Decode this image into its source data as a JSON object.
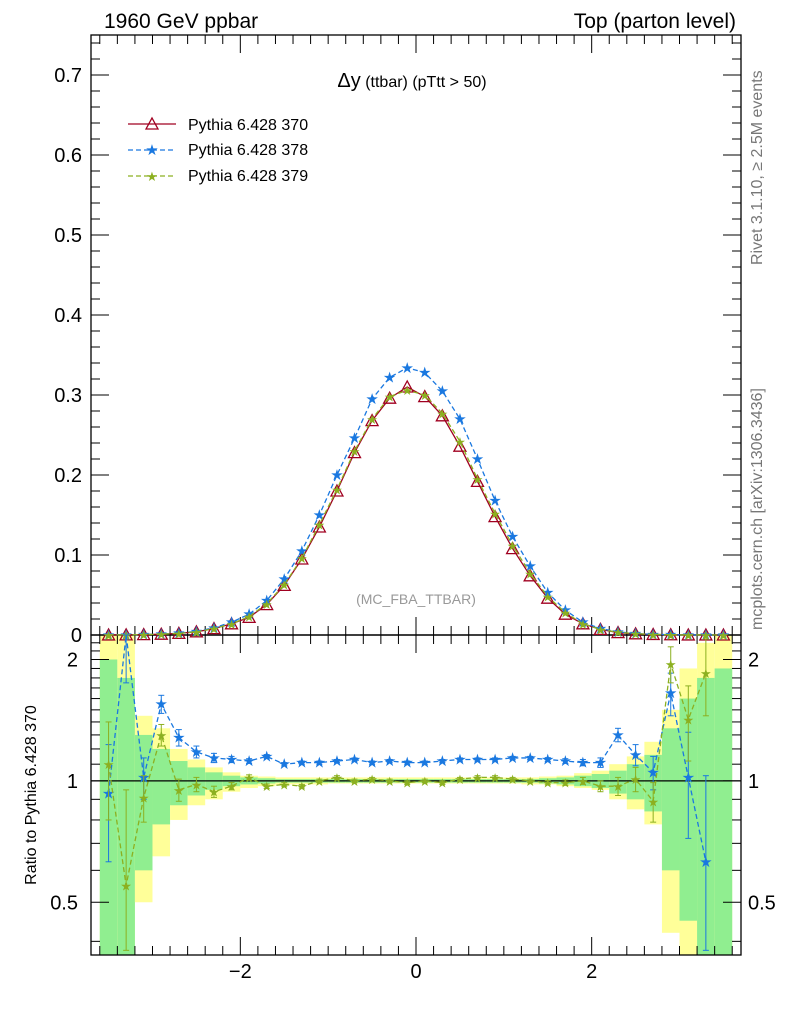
{
  "header": {
    "left": "1960 GeV ppbar",
    "right": "Top (parton level)"
  },
  "side": {
    "rivet": "Rivet 3.1.10, ≥ 2.5M events",
    "mcplots": "mcplots.cern.ch [arXiv:1306.3436]"
  },
  "chart_data": {
    "type": "line",
    "title_delta": "Δy",
    "title_rest": " (ttbar) (pTtt > 50)",
    "watermark": "(MC_FBA_TTBAR)",
    "x": [
      -3.5,
      -3.3,
      -3.1,
      -2.9,
      -2.7,
      -2.5,
      -2.3,
      -2.1,
      -1.9,
      -1.7,
      -1.5,
      -1.3,
      -1.1,
      -0.9,
      -0.7,
      -0.5,
      -0.3,
      -0.1,
      0.1,
      0.3,
      0.5,
      0.7,
      0.9,
      1.1,
      1.3,
      1.5,
      1.7,
      1.9,
      2.1,
      2.3,
      2.5,
      2.7,
      2.9,
      3.1,
      3.3,
      3.5
    ],
    "xlim": [
      -3.7,
      3.7
    ],
    "ylim": [
      0,
      0.75
    ],
    "yticks": [
      0,
      0.1,
      0.2,
      0.3,
      0.4,
      0.5,
      0.6,
      0.7
    ],
    "ytick_labels": [
      "0",
      "0.1",
      "0.2",
      "0.3",
      "0.4",
      "0.5",
      "0.6",
      "0.7"
    ],
    "xticks": [
      -2,
      0,
      2
    ],
    "xtick_labels": [
      "−2",
      "0",
      "2"
    ],
    "series": [
      {
        "name": "Pythia 6.428 370",
        "color": "#a00020",
        "marker": "triangle",
        "values": [
          0.0001,
          0.0002,
          0.0005,
          0.001,
          0.002,
          0.004,
          0.008,
          0.014,
          0.022,
          0.038,
          0.062,
          0.095,
          0.135,
          0.18,
          0.228,
          0.268,
          0.296,
          0.31,
          0.298,
          0.274,
          0.236,
          0.192,
          0.148,
          0.108,
          0.074,
          0.046,
          0.026,
          0.014,
          0.007,
          0.003,
          0.0015,
          0.0007,
          0.0003,
          0.0001,
          0.0001,
          0.0
        ]
      },
      {
        "name": "Pythia 6.428 378",
        "color": "#1a78e0",
        "marker": "star",
        "values": [
          0.0001,
          0.0003,
          0.0006,
          0.0012,
          0.0023,
          0.0045,
          0.009,
          0.016,
          0.026,
          0.043,
          0.07,
          0.105,
          0.15,
          0.2,
          0.246,
          0.295,
          0.322,
          0.334,
          0.328,
          0.305,
          0.27,
          0.22,
          0.168,
          0.123,
          0.086,
          0.053,
          0.031,
          0.016,
          0.008,
          0.004,
          0.0018,
          0.0008,
          0.0004,
          0.0001,
          0.0001,
          0.0
        ]
      },
      {
        "name": "Pythia 6.428 379",
        "color": "#8cb020",
        "marker": "star",
        "values": [
          0.0001,
          0.0002,
          0.0005,
          0.001,
          0.002,
          0.004,
          0.008,
          0.014,
          0.023,
          0.039,
          0.063,
          0.096,
          0.138,
          0.182,
          0.23,
          0.27,
          0.298,
          0.306,
          0.3,
          0.277,
          0.242,
          0.195,
          0.152,
          0.112,
          0.077,
          0.048,
          0.028,
          0.014,
          0.007,
          0.0035,
          0.0016,
          0.0007,
          0.0003,
          0.0001,
          0.0001,
          0.0
        ]
      }
    ],
    "ratio": {
      "ylabel": "Ratio to Pythia 6.428 370",
      "ylim": [
        0.37,
        2.3
      ],
      "yticks": [
        0.5,
        1,
        2
      ],
      "ytick_labels": [
        "0.5",
        "1",
        "2"
      ],
      "band_x": [
        -3.6,
        -3.4,
        -3.2,
        -3.0,
        -2.8,
        -2.6,
        -2.4,
        -2.2,
        -2.0,
        -1.8,
        -1.6,
        -1.4,
        -1.2,
        -1.0,
        -0.8,
        -0.6,
        -0.4,
        -0.2,
        0.0,
        0.2,
        0.4,
        0.6,
        0.8,
        1.0,
        1.2,
        1.4,
        1.6,
        1.8,
        2.0,
        2.2,
        2.4,
        2.6,
        2.8,
        3.0,
        3.2,
        3.4,
        3.6
      ],
      "stat_low": [
        0.37,
        0.37,
        0.6,
        0.78,
        0.87,
        0.92,
        0.95,
        0.97,
        0.98,
        0.985,
        0.99,
        0.99,
        0.99,
        0.99,
        0.99,
        0.99,
        0.99,
        0.99,
        0.99,
        0.99,
        0.99,
        0.99,
        0.99,
        0.99,
        0.99,
        0.985,
        0.98,
        0.97,
        0.96,
        0.93,
        0.9,
        0.84,
        0.6,
        0.45,
        0.37,
        0.37
      ],
      "stat_high": [
        2.0,
        1.8,
        1.3,
        1.2,
        1.12,
        1.08,
        1.05,
        1.03,
        1.02,
        1.015,
        1.01,
        1.01,
        1.01,
        1.01,
        1.01,
        1.01,
        1.01,
        1.01,
        1.01,
        1.01,
        1.01,
        1.01,
        1.01,
        1.01,
        1.01,
        1.015,
        1.02,
        1.03,
        1.04,
        1.06,
        1.1,
        1.16,
        1.35,
        1.6,
        1.8,
        1.9
      ],
      "tot_low": [
        0.37,
        0.37,
        0.5,
        0.65,
        0.8,
        0.87,
        0.9,
        0.94,
        0.96,
        0.97,
        0.98,
        0.98,
        0.98,
        0.985,
        0.985,
        0.985,
        0.985,
        0.985,
        0.985,
        0.985,
        0.985,
        0.985,
        0.985,
        0.985,
        0.98,
        0.98,
        0.97,
        0.96,
        0.95,
        0.9,
        0.85,
        0.78,
        0.42,
        0.37,
        0.37,
        0.37
      ],
      "tot_high": [
        2.3,
        2.3,
        1.45,
        1.35,
        1.2,
        1.13,
        1.08,
        1.05,
        1.03,
        1.025,
        1.02,
        1.02,
        1.02,
        1.02,
        1.02,
        1.02,
        1.02,
        1.02,
        1.02,
        1.02,
        1.02,
        1.02,
        1.02,
        1.02,
        1.02,
        1.025,
        1.03,
        1.045,
        1.06,
        1.1,
        1.15,
        1.25,
        1.5,
        1.9,
        2.2,
        2.3
      ],
      "series": [
        {
          "name": "Pythia 6.428 378",
          "values": [
            0.93,
            2.35,
            1.02,
            1.55,
            1.28,
            1.18,
            1.14,
            1.13,
            1.12,
            1.15,
            1.1,
            1.11,
            1.11,
            1.12,
            1.13,
            1.11,
            1.12,
            1.11,
            1.11,
            1.12,
            1.13,
            1.13,
            1.13,
            1.14,
            1.14,
            1.13,
            1.12,
            1.11,
            1.11,
            1.3,
            1.16,
            1.05,
            1.65,
            1.02,
            0.63,
            null
          ],
          "errors": [
            0.3,
            0.6,
            0.12,
            0.08,
            0.06,
            0.04,
            0.03,
            0.02,
            0.015,
            0.012,
            0.01,
            0.01,
            0.01,
            0.01,
            0.01,
            0.01,
            0.01,
            0.01,
            0.01,
            0.01,
            0.01,
            0.01,
            0.01,
            0.01,
            0.01,
            0.012,
            0.015,
            0.02,
            0.03,
            0.05,
            0.07,
            0.1,
            0.2,
            0.3,
            0.4,
            0
          ]
        },
        {
          "name": "Pythia 6.428 379",
          "values": [
            1.1,
            0.55,
            0.91,
            1.3,
            0.95,
            0.98,
            0.94,
            0.97,
            1.02,
            0.97,
            0.98,
            0.97,
            1.0,
            1.02,
            1.0,
            1.01,
            1.0,
            0.99,
            1.0,
            0.99,
            1.01,
            1.02,
            1.02,
            1.01,
            1.0,
            0.99,
            0.99,
            1.0,
            0.97,
            0.97,
            1.01,
            0.89,
            1.95,
            1.42,
            1.85,
            null
          ],
          "errors": [
            0.3,
            0.4,
            0.12,
            0.08,
            0.06,
            0.04,
            0.03,
            0.02,
            0.015,
            0.012,
            0.01,
            0.01,
            0.01,
            0.01,
            0.01,
            0.01,
            0.01,
            0.01,
            0.01,
            0.01,
            0.01,
            0.01,
            0.01,
            0.01,
            0.01,
            0.012,
            0.015,
            0.02,
            0.03,
            0.05,
            0.07,
            0.1,
            0.2,
            0.3,
            0.4,
            0
          ]
        }
      ]
    }
  }
}
